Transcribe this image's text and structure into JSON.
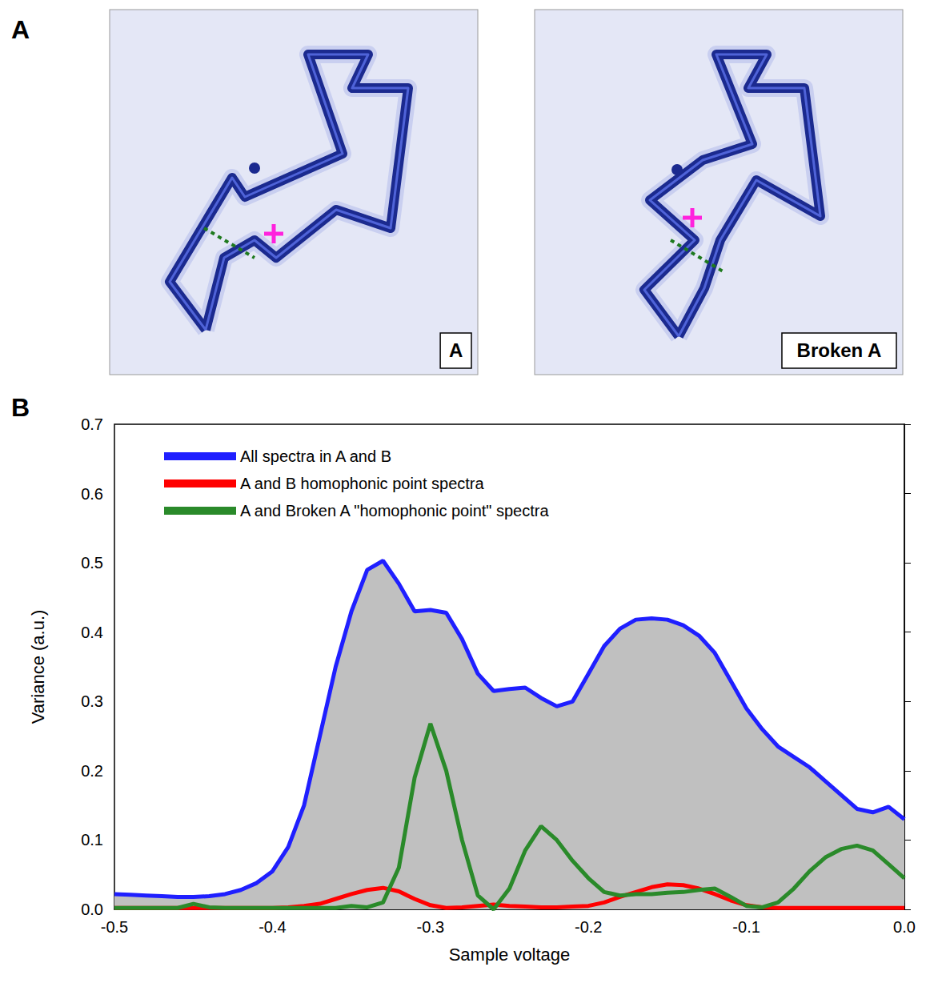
{
  "panel_labels": [
    "A",
    "B"
  ],
  "images": [
    {
      "label": "A"
    },
    {
      "label": "Broken A"
    }
  ],
  "chart_data": {
    "type": "line",
    "xlabel": "Sample voltage",
    "ylabel": "Variance (a.u.)",
    "x": [
      -0.5,
      -0.49,
      -0.48,
      -0.47,
      -0.46,
      -0.45,
      -0.44,
      -0.43,
      -0.42,
      -0.41,
      -0.4,
      -0.39,
      -0.38,
      -0.37,
      -0.36,
      -0.35,
      -0.34,
      -0.33,
      -0.32,
      -0.31,
      -0.3,
      -0.29,
      -0.28,
      -0.27,
      -0.26,
      -0.25,
      -0.24,
      -0.23,
      -0.22,
      -0.21,
      -0.2,
      -0.19,
      -0.18,
      -0.17,
      -0.16,
      -0.15,
      -0.14,
      -0.13,
      -0.12,
      -0.11,
      -0.1,
      -0.09,
      -0.08,
      -0.07,
      -0.06,
      -0.05,
      -0.04,
      -0.03,
      -0.02,
      -0.01,
      0
    ],
    "series": [
      {
        "name": "All spectra in A and B",
        "color": "#1f1fff",
        "type": "area",
        "values": [
          0.022,
          0.021,
          0.02,
          0.019,
          0.018,
          0.018,
          0.019,
          0.022,
          0.028,
          0.038,
          0.055,
          0.09,
          0.15,
          0.25,
          0.35,
          0.43,
          0.49,
          0.503,
          0.47,
          0.43,
          0.432,
          0.428,
          0.39,
          0.34,
          0.315,
          0.318,
          0.32,
          0.305,
          0.293,
          0.3,
          0.34,
          0.38,
          0.405,
          0.418,
          0.42,
          0.418,
          0.41,
          0.395,
          0.37,
          0.33,
          0.29,
          0.26,
          0.235,
          0.22,
          0.205,
          0.185,
          0.165,
          0.145,
          0.14,
          0.148,
          0.13
        ]
      },
      {
        "name": "A and B homophonic point spectra",
        "color": "#ff0000",
        "type": "line",
        "values": [
          0.002,
          0.002,
          0.002,
          0.002,
          0.002,
          0.002,
          0.002,
          0.002,
          0.002,
          0.002,
          0.002,
          0.003,
          0.005,
          0.008,
          0.015,
          0.022,
          0.028,
          0.031,
          0.026,
          0.015,
          0.006,
          0.002,
          0.003,
          0.005,
          0.007,
          0.005,
          0.004,
          0.003,
          0.003,
          0.004,
          0.005,
          0.01,
          0.018,
          0.025,
          0.032,
          0.036,
          0.035,
          0.03,
          0.022,
          0.013,
          0.006,
          0.003,
          0.002,
          0.002,
          0.002,
          0.002,
          0.002,
          0.002,
          0.002,
          0.002,
          0.002
        ]
      },
      {
        "name": "A and Broken A \"homophonic point\" spectra",
        "color": "#2a8a2a",
        "type": "line",
        "values": [
          0.002,
          0.002,
          0.002,
          0.002,
          0.002,
          0.008,
          0.003,
          0.002,
          0.002,
          0.002,
          0.002,
          0.002,
          0.002,
          0.002,
          0.002,
          0.005,
          0.003,
          0.01,
          0.06,
          0.19,
          0.268,
          0.2,
          0.1,
          0.02,
          0.0,
          0.03,
          0.085,
          0.12,
          0.1,
          0.07,
          0.045,
          0.025,
          0.02,
          0.022,
          0.022,
          0.024,
          0.025,
          0.028,
          0.03,
          0.018,
          0.005,
          0.003,
          0.01,
          0.03,
          0.055,
          0.075,
          0.087,
          0.092,
          0.085,
          0.065,
          0.045
        ]
      }
    ],
    "xlim": [
      -0.5,
      0
    ],
    "xticks": [
      -0.5,
      -0.4,
      -0.3,
      -0.2,
      -0.1,
      {
        "value": 0,
        "label": "0.0"
      }
    ],
    "ylim": [
      0,
      0.7
    ],
    "yticks": [
      {
        "value": 0,
        "label": "0.0"
      },
      0.1,
      0.2,
      0.3,
      0.4,
      0.5,
      0.6,
      0.7
    ],
    "grid": false,
    "legend": "upper left"
  }
}
